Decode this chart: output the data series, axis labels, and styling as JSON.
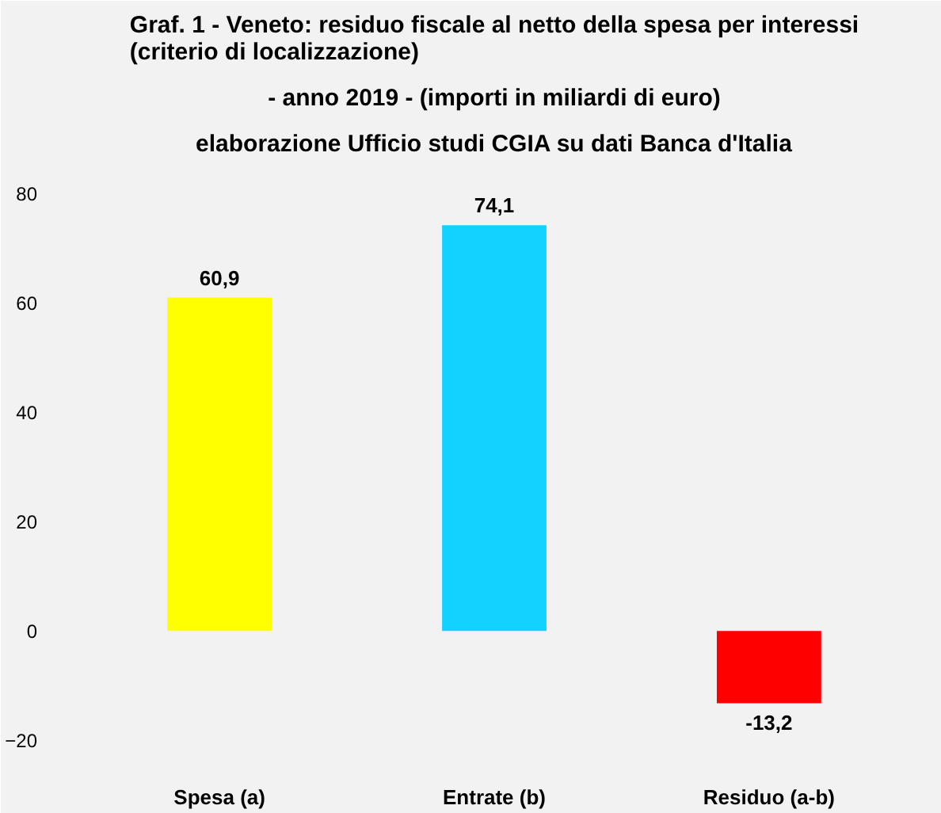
{
  "chart_data": {
    "type": "bar",
    "title": "Graf. 1 - Veneto: residuo fiscale al netto della spesa per interessi (criterio di localizzazione)",
    "subtitle": "- anno 2019 - (importi in miliardi di euro)",
    "annotations": [
      "elaborazione Ufficio studi CGIA su dati Banca d'Italia"
    ],
    "categories": [
      "Spesa (a)",
      "Entrate (b)",
      "Residuo (a-b)"
    ],
    "values": [
      60.9,
      74.1,
      -13.2
    ],
    "colors": [
      "#ffff00",
      "#14d2ff",
      "#ff0000"
    ],
    "value_labels": [
      "60,9",
      "74,1",
      "-13,2"
    ],
    "ylim": [
      -25,
      85
    ],
    "yticks": [
      -20,
      0,
      20,
      40,
      60,
      80
    ],
    "grid": false
  }
}
